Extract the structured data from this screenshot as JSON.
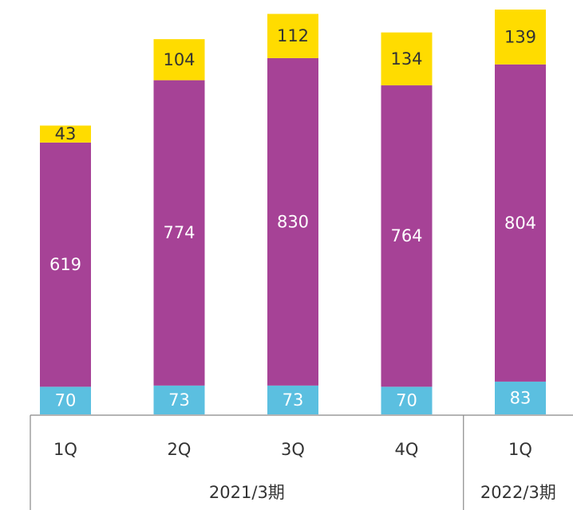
{
  "chart_data": {
    "type": "bar",
    "stacked": true,
    "groups": [
      {
        "label": "2021/3期",
        "categories": [
          "1Q",
          "2Q",
          "3Q",
          "4Q"
        ]
      },
      {
        "label": "2022/3期",
        "categories": [
          "1Q"
        ]
      }
    ],
    "series": [
      {
        "color": "#5bbfe0",
        "label_color": "#ffffff",
        "values": [
          70,
          73,
          73,
          70,
          83
        ]
      },
      {
        "color": "#a64296",
        "label_color": "#ffffff",
        "values": [
          619,
          774,
          830,
          764,
          804
        ]
      },
      {
        "color": "#ffdc00",
        "label_color": "#333333",
        "values": [
          43,
          104,
          112,
          134,
          139
        ]
      }
    ]
  }
}
